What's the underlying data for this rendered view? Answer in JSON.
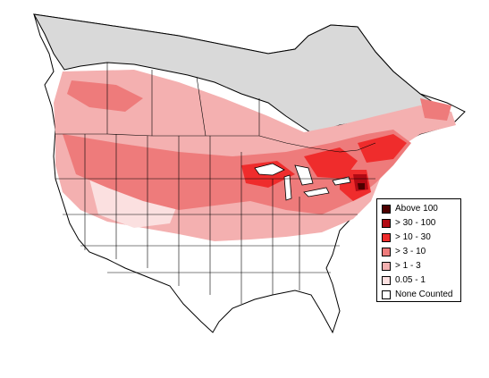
{
  "legend": {
    "items": [
      {
        "label": "Above 100",
        "color": "#4d0000"
      },
      {
        "label": "> 30 - 100",
        "color": "#b20a14"
      },
      {
        "label": "> 10 - 30",
        "color": "#ef2c2c"
      },
      {
        "label": "> 3 - 10",
        "color": "#ee7b7b"
      },
      {
        "label": "> 1 - 3",
        "color": "#f4b0b0"
      },
      {
        "label": "0.05 - 1",
        "color": "#fbe0e0"
      },
      {
        "label": "None Counted",
        "color": "#ffffff"
      }
    ]
  },
  "map_colors": {
    "no_data": "#d9d9d9",
    "land": "#ffffff",
    "boundary": "#000000"
  }
}
